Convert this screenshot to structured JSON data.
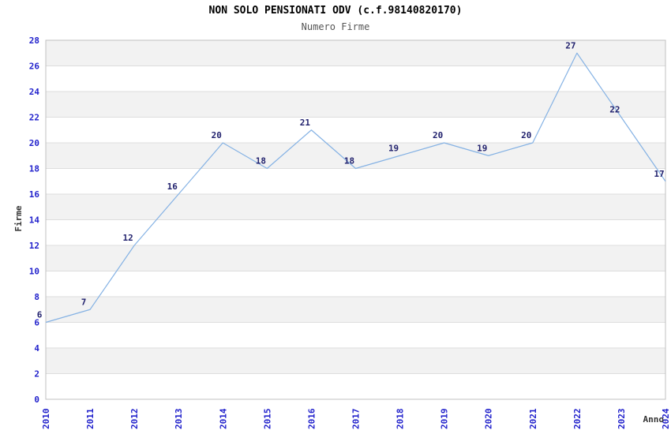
{
  "chart_data": {
    "type": "line",
    "title": "NON SOLO PENSIONATI ODV (c.f.98140820170)",
    "subtitle": "Numero Firme",
    "xlabel": "Anno",
    "ylabel": "Firme",
    "categories": [
      "2010",
      "2011",
      "2012",
      "2013",
      "2014",
      "2015",
      "2016",
      "2017",
      "2018",
      "2019",
      "2020",
      "2021",
      "2022",
      "2023",
      "2024"
    ],
    "series": [
      {
        "name": "Numero Firme",
        "values": [
          6,
          7,
          12,
          16,
          20,
          18,
          21,
          18,
          19,
          20,
          19,
          20,
          27,
          22,
          17
        ]
      }
    ],
    "ylim": [
      0,
      28
    ],
    "ytick_step": 2,
    "grid": true,
    "band_pattern": "alternating 2-unit horizontal bands, gray on 2-4, 6-8, 10-12, 14-16, 18-20, 22-24, 26-28",
    "legend": "none",
    "colors": {
      "line": "#85b2e4",
      "data_label": "#22226e",
      "tick_label": "#2222cc",
      "axis_label": "#333333",
      "title": "#000000",
      "subtitle": "#555555",
      "band": "#f2f2f2",
      "gridline": "#dddddd",
      "plot_border": "#c0c0c0",
      "background": "#ffffff"
    }
  }
}
